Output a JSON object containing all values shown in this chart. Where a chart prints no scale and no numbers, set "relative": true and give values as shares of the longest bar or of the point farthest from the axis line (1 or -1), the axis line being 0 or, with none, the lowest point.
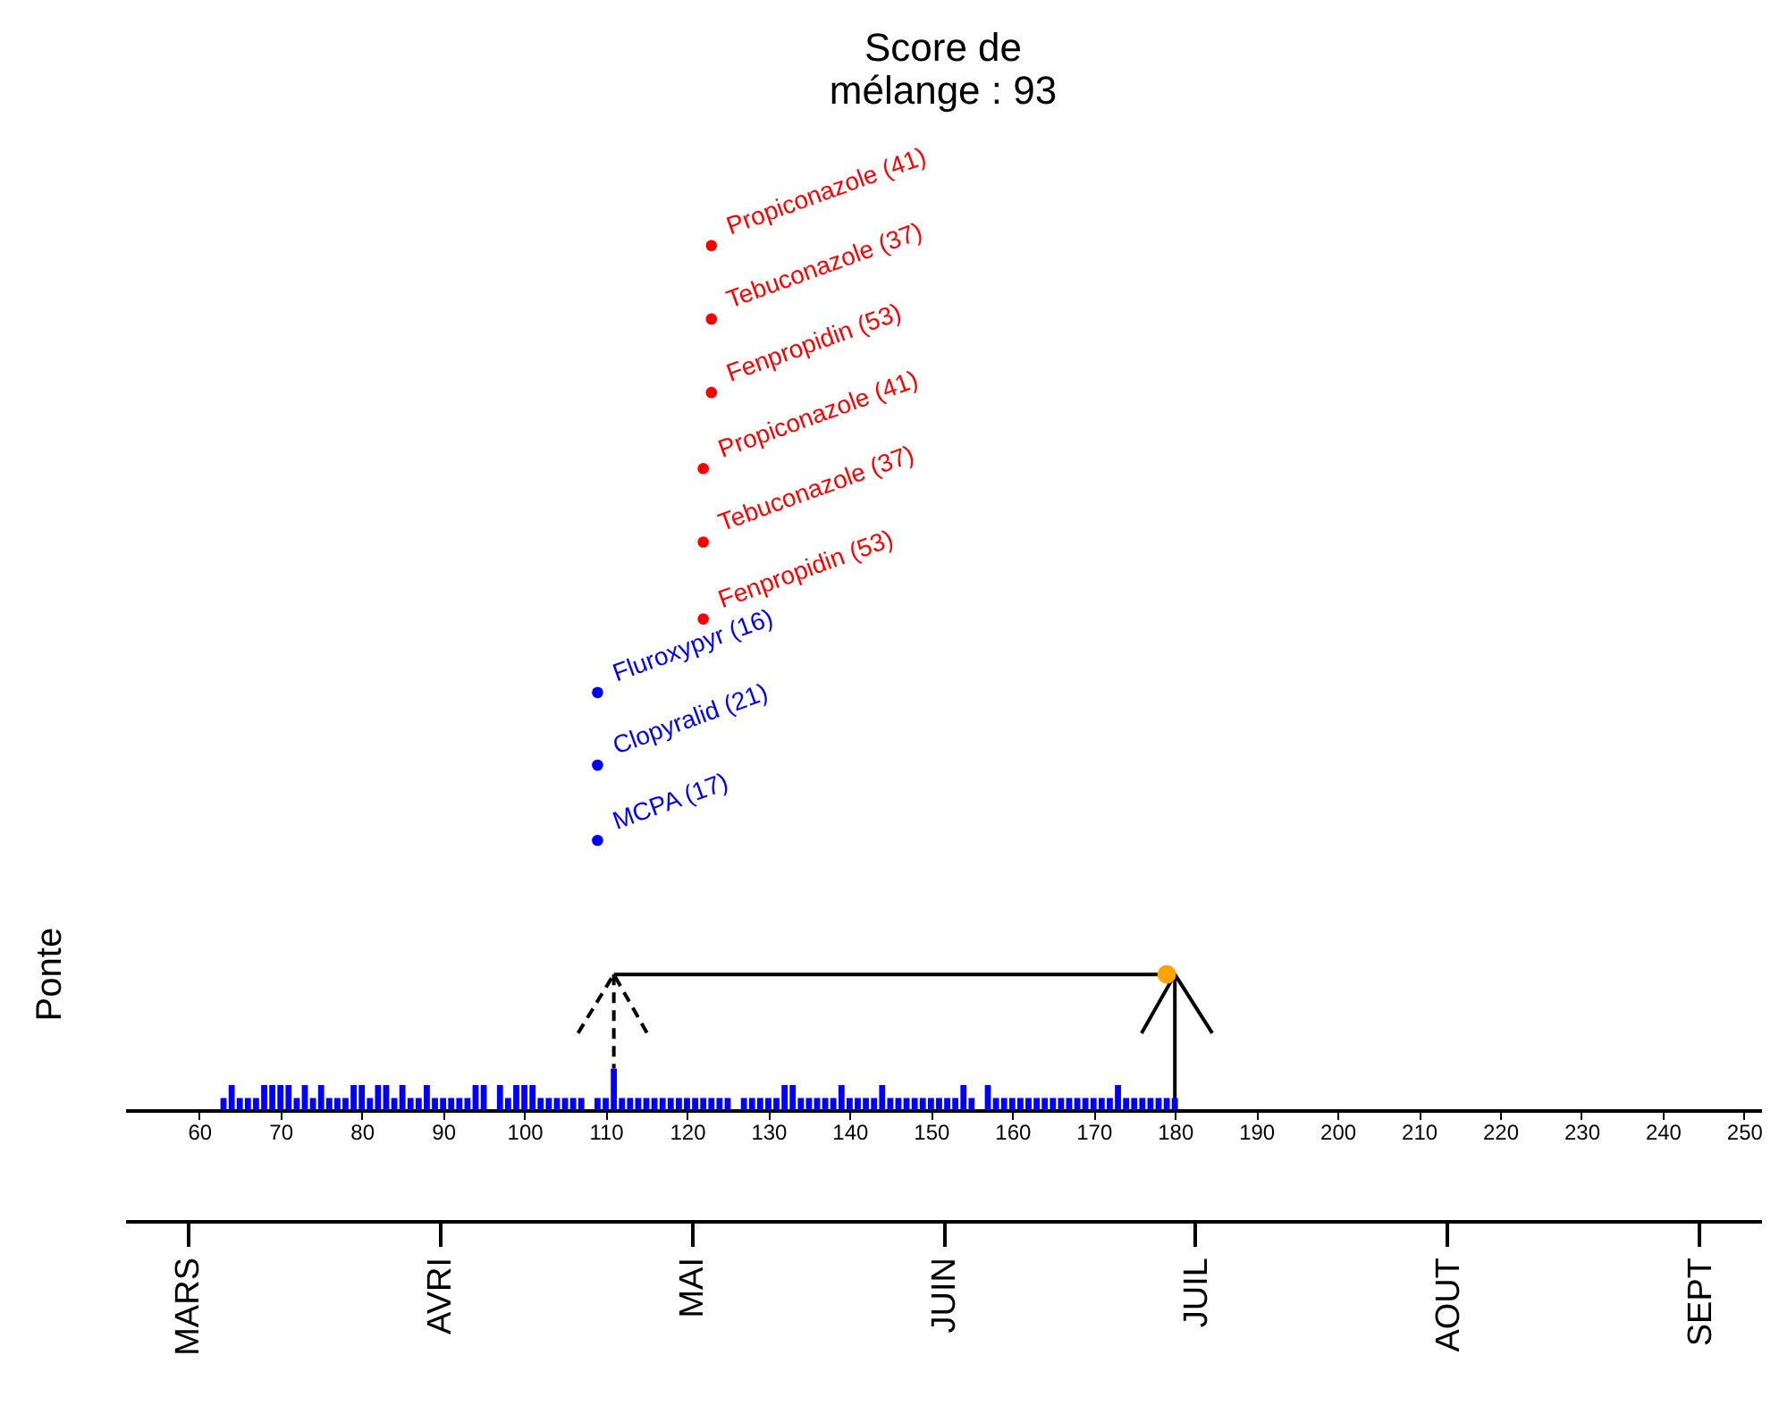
{
  "chart_data": {
    "type": "bar",
    "title": "Score de\nmélange :  93",
    "ylabel": "Ponte",
    "relative": true,
    "grid": false,
    "xlim": [
      52,
      251
    ],
    "xticks": [
      60,
      70,
      80,
      90,
      100,
      110,
      120,
      130,
      140,
      150,
      160,
      170,
      180,
      190,
      200,
      210,
      220,
      230,
      240,
      250
    ],
    "annotations": [
      "MARS",
      "AVRI",
      "MAI",
      "JUIN",
      "JUIL",
      "AOUT",
      "SEPT",
      {
        "text": "Propiconazole (41)",
        "x": 123,
        "y": 1
      },
      {
        "text": "Tebuconazole (37)",
        "x": 123,
        "y": 0.915
      },
      {
        "text": "Fenpropidin (53)",
        "x": 123,
        "y": 0.83
      },
      {
        "text": "Propiconazole (41)",
        "x": 122,
        "y": 0.742
      },
      {
        "text": "Tebuconazole (37)",
        "x": 122,
        "y": 0.657
      },
      {
        "text": "Fenpropidin (53)",
        "x": 122,
        "y": 0.568
      },
      {
        "text": "Fluroxypyr (16)",
        "x": 109,
        "y": 0.483
      },
      {
        "text": "Clopyralid (21)",
        "x": 109,
        "y": 0.399
      },
      {
        "text": "MCPA (17)",
        "x": 109,
        "y": 0.312
      }
    ],
    "series": [
      {
        "color": "#0000ff",
        "x": [
          63,
          64,
          65,
          66,
          67,
          68,
          69,
          70,
          71,
          72,
          73,
          74,
          75,
          76,
          77,
          78,
          79,
          80,
          81,
          82,
          83,
          84,
          85,
          86,
          87,
          88,
          89,
          90,
          91,
          92,
          93,
          94,
          95,
          97,
          98,
          99,
          100,
          101,
          102,
          103,
          104,
          105,
          106,
          107,
          109,
          110,
          111,
          112,
          113,
          114,
          115,
          116,
          117,
          118,
          119,
          120,
          121,
          122,
          123,
          124,
          125,
          127,
          128,
          129,
          130,
          131,
          132,
          133,
          134,
          135,
          136,
          137,
          138,
          139,
          140,
          141,
          142,
          143,
          144,
          145,
          146,
          147,
          148,
          149,
          150,
          151,
          152,
          153,
          154,
          155,
          157,
          158,
          159,
          160,
          161,
          162,
          163,
          164,
          165,
          166,
          167,
          168,
          169,
          170,
          171,
          172,
          173,
          174,
          175,
          176,
          177,
          178,
          179,
          180
        ],
        "values": [
          0.014,
          0.029,
          0.014,
          0.014,
          0.014,
          0.029,
          0.029,
          0.029,
          0.029,
          0.014,
          0.029,
          0.014,
          0.029,
          0.014,
          0.014,
          0.014,
          0.029,
          0.029,
          0.014,
          0.029,
          0.029,
          0.014,
          0.029,
          0.014,
          0.014,
          0.029,
          0.014,
          0.014,
          0.014,
          0.014,
          0.014,
          0.029,
          0.029,
          0.029,
          0.014,
          0.029,
          0.029,
          0.029,
          0.014,
          0.014,
          0.014,
          0.014,
          0.014,
          0.014,
          0.014,
          0.014,
          0.048,
          0.014,
          0.014,
          0.014,
          0.014,
          0.014,
          0.014,
          0.014,
          0.014,
          0.014,
          0.014,
          0.014,
          0.014,
          0.014,
          0.014,
          0.014,
          0.014,
          0.014,
          0.014,
          0.014,
          0.029,
          0.029,
          0.014,
          0.014,
          0.014,
          0.014,
          0.014,
          0.029,
          0.014,
          0.014,
          0.014,
          0.014,
          0.029,
          0.014,
          0.014,
          0.014,
          0.014,
          0.014,
          0.014,
          0.014,
          0.014,
          0.014,
          0.029,
          0.014,
          0.029,
          0.014,
          0.014,
          0.014,
          0.014,
          0.014,
          0.014,
          0.014,
          0.014,
          0.014,
          0.014,
          0.014,
          0.014,
          0.014,
          0.014,
          0.014,
          0.029,
          0.014,
          0.014,
          0.014,
          0.014,
          0.014,
          0.014,
          0.014
        ]
      },
      {
        "type": "line",
        "color": "#000000",
        "line_style": "solid",
        "marker": "none",
        "x": [
          111,
          180
        ],
        "values": [
          0.157,
          0.157
        ]
      },
      {
        "type": "line",
        "color": "#000000",
        "line_style": "dashed",
        "marker": "none",
        "x": [
          111,
          111
        ],
        "values": [
          0.157,
          0.048
        ]
      },
      {
        "type": "line",
        "color": "#000000",
        "line_style": "dashed",
        "marker": "none",
        "x": [
          106.6,
          111,
          115.1
        ],
        "values": [
          0.089,
          0.157,
          0.089
        ]
      },
      {
        "type": "line",
        "color": "#000000",
        "line_style": "solid",
        "marker": "none",
        "x": [
          180,
          180
        ],
        "values": [
          0.157,
          0
        ]
      },
      {
        "type": "line",
        "color": "#000000",
        "line_style": "solid",
        "marker": "none",
        "x": [
          175.9,
          180,
          184.6
        ],
        "values": [
          0.089,
          0.157,
          0.089
        ]
      },
      {
        "type": "scatter",
        "color": "#ffa500",
        "marker": "circle",
        "x": [
          179
        ],
        "values": [
          0.157
        ]
      },
      {
        "type": "scatter",
        "color": "#ff0000",
        "marker": "circle",
        "x": [
          123,
          123,
          123,
          122,
          122,
          122
        ],
        "values": [
          1,
          0.915,
          0.83,
          0.742,
          0.657,
          0.568
        ]
      },
      {
        "type": "scatter",
        "color": "#0000ff",
        "marker": "circle",
        "x": [
          109,
          109,
          109
        ],
        "values": [
          0.483,
          0.399,
          0.312
        ]
      }
    ]
  }
}
